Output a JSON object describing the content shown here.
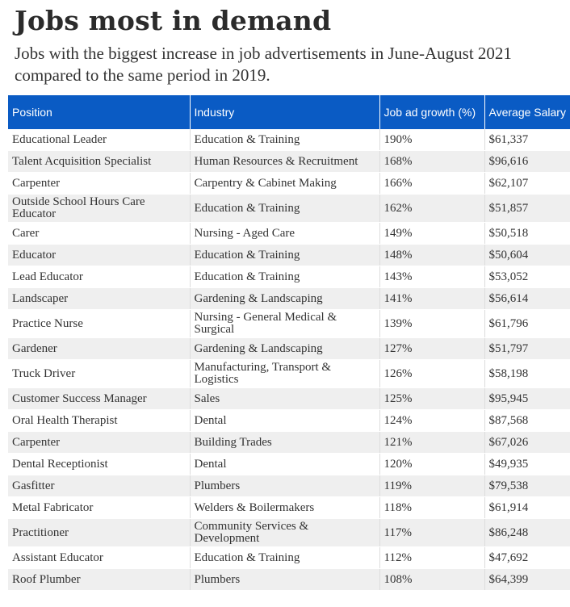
{
  "header": {
    "title": "Jobs most in demand",
    "subtitle": "Jobs with the biggest increase in job advertisements in June-August 2021 compared to the same period in 2019."
  },
  "table": {
    "columns": [
      "Position",
      "Industry",
      "Job ad growth (%)",
      "Average Salary"
    ],
    "rows": [
      {
        "position": "Educational Leader",
        "industry": "Education & Training",
        "growth": "190%",
        "salary": "$61,337"
      },
      {
        "position": "Talent Acquisition Specialist",
        "industry": "Human Resources & Recruitment",
        "growth": "168%",
        "salary": "$96,616"
      },
      {
        "position": "Carpenter",
        "industry": "Carpentry & Cabinet Making",
        "growth": "166%",
        "salary": "$62,107"
      },
      {
        "position": "Outside School Hours Care Educator",
        "industry": "Education & Training",
        "growth": "162%",
        "salary": "$51,857"
      },
      {
        "position": "Carer",
        "industry": "Nursing - Aged Care",
        "growth": "149%",
        "salary": "$50,518"
      },
      {
        "position": "Educator",
        "industry": "Education & Training",
        "growth": "148%",
        "salary": "$50,604"
      },
      {
        "position": "Lead Educator",
        "industry": "Education & Training",
        "growth": "143%",
        "salary": "$53,052"
      },
      {
        "position": "Landscaper",
        "industry": "Gardening & Landscaping",
        "growth": "141%",
        "salary": "$56,614"
      },
      {
        "position": "Practice Nurse",
        "industry": "Nursing - General Medical & Surgical",
        "growth": "139%",
        "salary": "$61,796"
      },
      {
        "position": "Gardener",
        "industry": "Gardening & Landscaping",
        "growth": "127%",
        "salary": "$51,797"
      },
      {
        "position": "Truck Driver",
        "industry": "Manufacturing, Transport & Logistics",
        "growth": "126%",
        "salary": "$58,198"
      },
      {
        "position": "Customer Success Manager",
        "industry": "Sales",
        "growth": "125%",
        "salary": "$95,945"
      },
      {
        "position": "Oral Health Therapist",
        "industry": "Dental",
        "growth": "124%",
        "salary": "$87,568"
      },
      {
        "position": "Carpenter",
        "industry": "Building Trades",
        "growth": "121%",
        "salary": "$67,026"
      },
      {
        "position": "Dental Receptionist",
        "industry": "Dental",
        "growth": "120%",
        "salary": "$49,935"
      },
      {
        "position": "Gasfitter",
        "industry": "Plumbers",
        "growth": "119%",
        "salary": "$79,538"
      },
      {
        "position": "Metal Fabricator",
        "industry": "Welders & Boilermakers",
        "growth": "118%",
        "salary": "$61,914"
      },
      {
        "position": "Practitioner",
        "industry": "Community Services & Development",
        "growth": "117%",
        "salary": "$86,248"
      },
      {
        "position": "Assistant Educator",
        "industry": "Education & Training",
        "growth": "112%",
        "salary": "$47,692"
      },
      {
        "position": "Roof Plumber",
        "industry": "Plumbers",
        "growth": "108%",
        "salary": "$64,399"
      }
    ]
  },
  "colors": {
    "header_bg": "#0a5bc4",
    "stripe": "#efefef",
    "title": "#2b2b2b"
  }
}
